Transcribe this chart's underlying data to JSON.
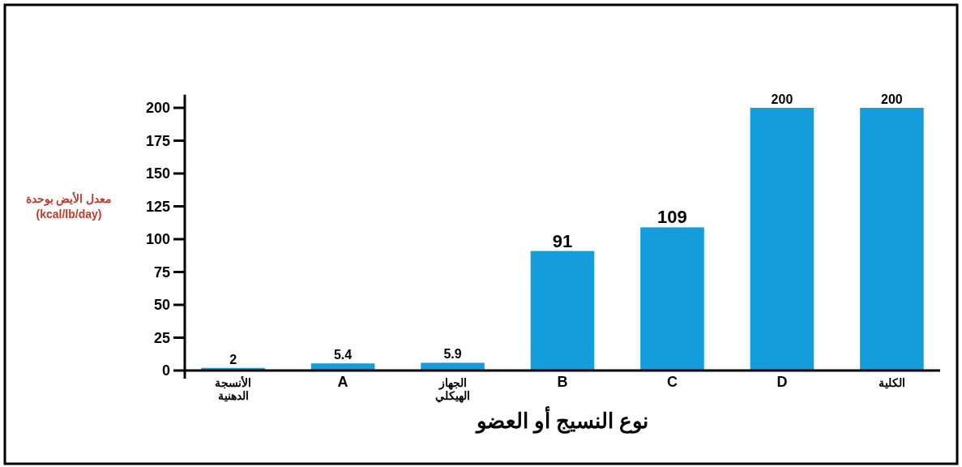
{
  "chart_data": {
    "type": "bar",
    "xlabel": "نوع النسيج أو العضو",
    "ylabel": "معدل الأيض بوحدة\n(kcal/lb/day)",
    "categories": [
      "الأنسجة\nالدهنية",
      "A",
      "الجهاز\nالهيكلي",
      "B",
      "C",
      "D",
      "الكلية"
    ],
    "values": [
      2,
      5.4,
      5.9,
      91,
      109,
      200,
      200
    ],
    "color": "#139ddb",
    "ylim": [
      0,
      210
    ],
    "yticks": [
      0,
      25,
      50,
      75,
      100,
      125,
      150,
      175,
      200
    ],
    "grid": false,
    "data_labels": true
  }
}
